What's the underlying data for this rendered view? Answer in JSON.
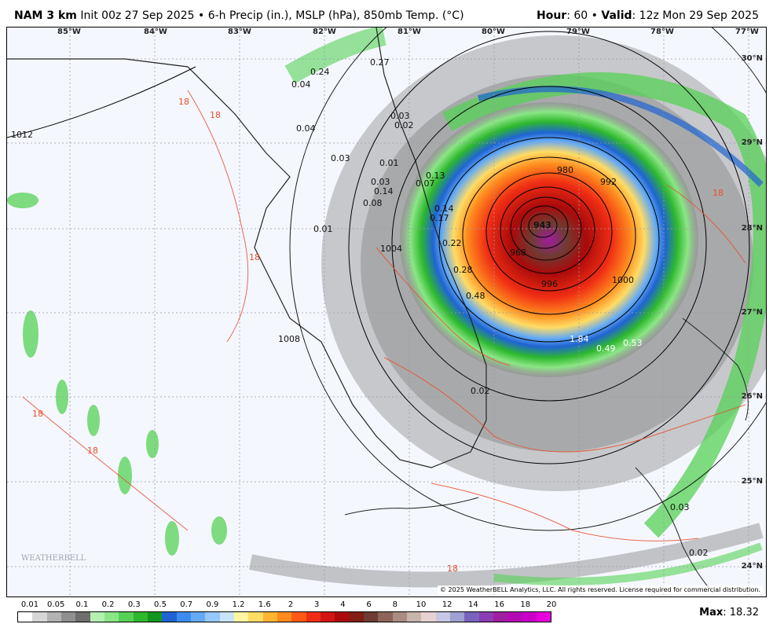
{
  "header": {
    "model": "NAM 3 km",
    "init": "Init 00z 27 Sep 2025",
    "products": "6-h Precip (in.), MSLP (hPa), 850mb Temp. (°C)",
    "hour_label": "Hour",
    "hour_value": ": 60",
    "valid_label": "Valid",
    "valid_value": ": 12z Mon 29 Sep 2025"
  },
  "longitudes": [
    "85°W",
    "84°W",
    "83°W",
    "82°W",
    "81°W",
    "80°W",
    "79°W",
    "78°W",
    "77°W"
  ],
  "latitudes": [
    "30°N",
    "29°N",
    "28°N",
    "27°N",
    "26°N",
    "25°N",
    "24°N"
  ],
  "isobar_labels": [
    "1012",
    "1008",
    "1004",
    "1000",
    "996",
    "992",
    "980",
    "943",
    "968"
  ],
  "precip_labels": [
    "0.27",
    "0.24",
    "0.04",
    "0.04",
    "0.03",
    "0.02",
    "0.03",
    "0.01",
    "0.03",
    "0.14",
    "0.08",
    "0.01",
    "0.13",
    "0.07",
    "0.14",
    "0.17",
    "0.22",
    "0.28",
    "0.48",
    "1.84",
    "0.49",
    "0.53",
    "0.02",
    "0.03",
    "0.02"
  ],
  "temp_label": "18",
  "copyright": "© 2025 WeatherBELL Analytics, LLC. All rights reserved. License required for commercial distribution.",
  "watermark": "WEATHERBELL",
  "legend": {
    "ticks": [
      "0.01",
      "0.05",
      "0.1",
      "0.2",
      "0.3",
      "0.5",
      "0.7",
      "0.9",
      "1.2",
      "1.6",
      "2",
      "3",
      "4",
      "6",
      "8",
      "10",
      "12",
      "14",
      "16",
      "18",
      "20"
    ],
    "colors": [
      "#ffffff",
      "#d6d6d6",
      "#b3b3b3",
      "#8f8f8f",
      "#6e6e6e",
      "#b4f0b0",
      "#8be685",
      "#55d255",
      "#2eb82e",
      "#12961e",
      "#1f64d2",
      "#3c8cf0",
      "#64aaf5",
      "#96c8fa",
      "#c8e4fc",
      "#fff5a0",
      "#ffdc64",
      "#ffb432",
      "#ff8c1e",
      "#ff5a14",
      "#ef2d14",
      "#d21414",
      "#aa0a0a",
      "#821e14",
      "#6e3c32",
      "#8c645a",
      "#aa8c82",
      "#c8b4aa",
      "#e6d2d2",
      "#c8c8e6",
      "#a0a0d2",
      "#7864be",
      "#8c3cb4",
      "#a01ea0",
      "#b40ab4",
      "#c800c8",
      "#e600dc"
    ]
  },
  "max": {
    "label": "Max",
    "value": ": 18.32"
  }
}
